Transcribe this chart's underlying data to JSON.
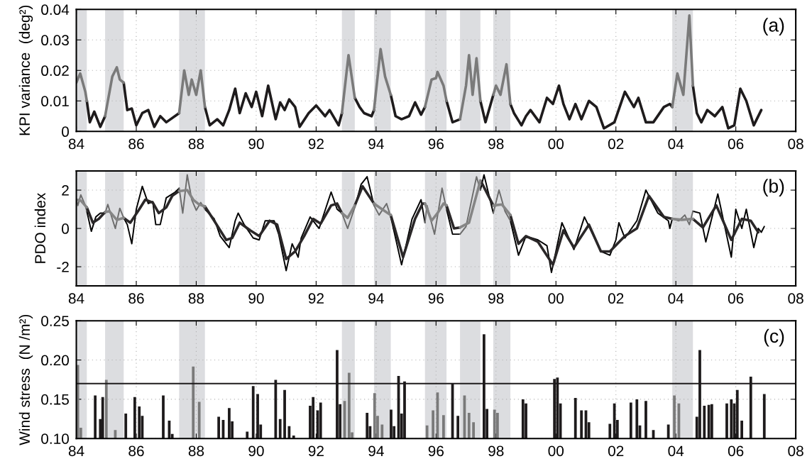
{
  "chart_data": [
    {
      "type": "line",
      "ylabel": "KPI variance  (deg²)",
      "annotations": [
        "(a)"
      ],
      "xlim": [
        1984,
        2008
      ],
      "xticks": [
        {
          "value": 1984,
          "label": "84"
        },
        {
          "value": 1986,
          "label": "86"
        },
        {
          "value": 1988,
          "label": "88"
        },
        {
          "value": 1990,
          "label": "90"
        },
        {
          "value": 1992,
          "label": "92"
        },
        {
          "value": 1994,
          "label": "94"
        },
        {
          "value": 1996,
          "label": "96"
        },
        {
          "value": 1998,
          "label": "98"
        },
        {
          "value": 2000,
          "label": "00"
        },
        {
          "value": 2002,
          "label": "02"
        },
        {
          "value": 2004,
          "label": "04"
        },
        {
          "value": 2006,
          "label": "06"
        },
        {
          "value": 2008,
          "label": "08"
        }
      ],
      "ylim": [
        0,
        0.04
      ],
      "yticks": [
        0,
        0.01,
        0.02,
        0.03,
        0.04
      ],
      "grid": true,
      "bands": [
        {
          "axis": "x",
          "from": 1984.0,
          "to": 1984.35,
          "color": "#dcdde0"
        },
        {
          "axis": "x",
          "from": 1984.96,
          "to": 1985.58,
          "color": "#dcdde0"
        },
        {
          "axis": "x",
          "from": 1987.43,
          "to": 1988.29,
          "color": "#dcdde0"
        },
        {
          "axis": "x",
          "from": 1992.86,
          "to": 1993.29,
          "color": "#dcdde0"
        },
        {
          "axis": "x",
          "from": 1993.93,
          "to": 1994.49,
          "color": "#dcdde0"
        },
        {
          "axis": "x",
          "from": 1995.63,
          "to": 1996.35,
          "color": "#dcdde0"
        },
        {
          "axis": "x",
          "from": 1996.8,
          "to": 1997.48,
          "color": "#dcdde0"
        },
        {
          "axis": "x",
          "from": 1997.91,
          "to": 1998.48,
          "color": "#dcdde0"
        },
        {
          "axis": "x",
          "from": 2003.88,
          "to": 2004.57,
          "color": "#dcdde0"
        }
      ],
      "series": [
        {
          "color": "#1e1b1c",
          "x": [
            1984.35,
            1984.45,
            1984.6,
            1984.8,
            1984.96,
            1985.2,
            1985.58,
            1985.7,
            1985.85,
            1986.0,
            1986.2,
            1986.4,
            1986.6,
            1986.8,
            1987.0,
            1987.43,
            1987.8,
            1988.29,
            1988.45,
            1988.7,
            1988.9,
            1989.1,
            1989.3,
            1989.45,
            1989.65,
            1989.85,
            1990.0,
            1990.2,
            1990.4,
            1990.65,
            1990.8,
            1990.95,
            1991.1,
            1991.3,
            1991.45,
            1991.75,
            1992.0,
            1992.3,
            1992.45,
            1992.75,
            1992.86,
            1993.0,
            1993.29,
            1993.45,
            1993.6,
            1993.85,
            1993.93,
            1994.2,
            1994.49,
            1994.65,
            1994.85,
            1995.1,
            1995.3,
            1995.5,
            1995.63,
            1996.0,
            1996.35,
            1996.55,
            1996.8,
            1997.1,
            1997.48,
            1997.65,
            1997.91,
            1998.2,
            1998.48,
            1998.6,
            1998.85,
            1999.0,
            1999.15,
            1999.45,
            1999.7,
            1999.9,
            2000.1,
            2000.25,
            2000.45,
            2000.65,
            2000.85,
            2001.1,
            2001.35,
            2001.6,
            2001.95,
            2002.3,
            2002.6,
            2002.75,
            2003.0,
            2003.25,
            2003.6,
            2003.8,
            2003.88,
            2004.2,
            2004.57,
            2004.7,
            2004.85,
            2005.05,
            2005.3,
            2005.55,
            2005.75,
            2005.95,
            2006.15,
            2006.35,
            2006.6,
            2006.85
          ],
          "values": [
            0.01,
            0.003,
            0.0065,
            0.0015,
            0.005,
            null,
            0.016,
            0.007,
            0.0075,
            0.002,
            0.006,
            0.007,
            0.0015,
            0.005,
            0.003,
            0.006,
            null,
            0.008,
            0.002,
            0.004,
            0.002,
            0.007,
            0.014,
            0.006,
            0.0125,
            0.008,
            0.013,
            0.005,
            0.015,
            0.004,
            0.0095,
            0.007,
            0.0105,
            0.008,
            0.0015,
            0.006,
            0.0085,
            0.005,
            0.007,
            0.002,
            0.006,
            null,
            0.011,
            0.008,
            0.006,
            0.005,
            0.007,
            null,
            0.012,
            0.005,
            0.004,
            0.005,
            0.0095,
            0.0055,
            0.008,
            null,
            0.01,
            0.003,
            0.004,
            null,
            0.01,
            0.003,
            0.012,
            null,
            0.009,
            0.006,
            0.002,
            0.005,
            0.007,
            0.003,
            0.011,
            0.009,
            0.015,
            0.009,
            0.004,
            0.009,
            0.004,
            0.01,
            0.008,
            0.001,
            0.003,
            0.013,
            0.008,
            0.011,
            0.003,
            0.003,
            0.008,
            0.009,
            0.008,
            null,
            0.015,
            0.006,
            0.003,
            0.007,
            0.005,
            0.008,
            0.001,
            0.002,
            0.014,
            0.01,
            0.002,
            0.007
          ]
        },
        {
          "color": "#7a7a7a",
          "x": [
            1984.0,
            1984.13,
            1984.3,
            1984.35,
            1984.6,
            1984.96,
            1985.2,
            1985.35,
            1985.45,
            1985.58,
            1986.5,
            1987.43,
            1987.6,
            1987.75,
            1987.85,
            1988.0,
            1988.15,
            1988.29,
            1990.0,
            1992.86,
            1993.08,
            1993.29,
            1993.6,
            1993.93,
            1994.15,
            1994.3,
            1994.49,
            1995.0,
            1995.63,
            1995.85,
            1996.0,
            1996.05,
            1996.25,
            1996.35,
            1996.55,
            1996.8,
            1997.0,
            1997.1,
            1997.22,
            1997.35,
            1997.48,
            1997.65,
            1997.91,
            1998.0,
            1998.15,
            1998.35,
            1998.48,
            2001.0,
            2003.88,
            2004.05,
            2004.25,
            2004.45,
            2004.57
          ],
          "values": [
            0.016,
            0.019,
            0.013,
            0.01,
            null,
            0.005,
            0.018,
            0.021,
            0.017,
            0.016,
            null,
            0.006,
            0.02,
            0.012,
            0.017,
            0.012,
            0.02,
            0.008,
            null,
            0.006,
            0.025,
            0.011,
            null,
            0.007,
            0.027,
            0.018,
            0.012,
            null,
            0.008,
            0.017,
            0.0175,
            0.0195,
            0.015,
            0.01,
            null,
            0.004,
            0.015,
            0.025,
            0.012,
            0.024,
            0.01,
            null,
            0.012,
            0.015,
            0.012,
            0.022,
            0.009,
            null,
            0.008,
            0.019,
            0.012,
            0.038,
            0.015
          ]
        }
      ]
    },
    {
      "type": "line",
      "ylabel": "PDO index",
      "annotations": [
        "(b)"
      ],
      "xlim": [
        1984,
        2008
      ],
      "xticks": [
        {
          "value": 1984,
          "label": "84"
        },
        {
          "value": 1986,
          "label": "86"
        },
        {
          "value": 1988,
          "label": "88"
        },
        {
          "value": 1990,
          "label": "90"
        },
        {
          "value": 1992,
          "label": "92"
        },
        {
          "value": 1994,
          "label": "94"
        },
        {
          "value": 1996,
          "label": "96"
        },
        {
          "value": 1998,
          "label": "98"
        },
        {
          "value": 2000,
          "label": "00"
        },
        {
          "value": 2002,
          "label": "02"
        },
        {
          "value": 2004,
          "label": "04"
        },
        {
          "value": 2006,
          "label": "06"
        },
        {
          "value": 2008,
          "label": "08"
        }
      ],
      "ylim": [
        -3,
        3
      ],
      "yticks": [
        -2,
        0,
        2
      ],
      "grid": true,
      "bands": [
        {
          "axis": "x",
          "from": 1984.0,
          "to": 1984.35,
          "color": "#dcdde0"
        },
        {
          "axis": "x",
          "from": 1984.96,
          "to": 1985.58,
          "color": "#dcdde0"
        },
        {
          "axis": "x",
          "from": 1987.43,
          "to": 1988.29,
          "color": "#dcdde0"
        },
        {
          "axis": "x",
          "from": 1992.86,
          "to": 1993.29,
          "color": "#dcdde0"
        },
        {
          "axis": "x",
          "from": 1993.93,
          "to": 1994.49,
          "color": "#dcdde0"
        },
        {
          "axis": "x",
          "from": 1995.63,
          "to": 1996.35,
          "color": "#dcdde0"
        },
        {
          "axis": "x",
          "from": 1996.8,
          "to": 1997.48,
          "color": "#dcdde0"
        },
        {
          "axis": "x",
          "from": 1997.91,
          "to": 1998.48,
          "color": "#dcdde0"
        },
        {
          "axis": "x",
          "from": 2003.88,
          "to": 2004.57,
          "color": "#dcdde0"
        }
      ],
      "series": [
        {
          "color": "#000000",
          "x": [
            1984.35,
            1984.5,
            1984.65,
            1984.8,
            1984.96,
            1985.2,
            1985.58,
            1985.7,
            1985.85,
            1986.0,
            1986.2,
            1986.4,
            1986.55,
            1986.65,
            1986.8,
            1987.0,
            1987.3,
            1987.43,
            1987.8,
            1988.29,
            1988.6,
            1988.8,
            1989.1,
            1989.3,
            1989.4,
            1989.6,
            1989.9,
            1990.1,
            1990.3,
            1990.6,
            1990.75,
            1991.0,
            1991.2,
            1991.4,
            1991.5,
            1991.8,
            1992.1,
            1992.5,
            1992.7,
            1992.86,
            1993.0,
            1993.29,
            1993.5,
            1993.7,
            1993.93,
            1994.2,
            1994.49,
            1994.85,
            1995.2,
            1995.5,
            1995.63,
            1996.0,
            1996.35,
            1996.55,
            1996.8,
            1997.1,
            1997.48,
            1997.6,
            1997.91,
            1998.2,
            1998.48,
            1998.75,
            1999.0,
            1999.4,
            1999.7,
            1999.85,
            2000.2,
            2000.6,
            2000.95,
            2001.5,
            2001.8,
            2002.0,
            2002.1,
            2002.3,
            2002.7,
            2003.0,
            2003.4,
            2003.75,
            2003.8,
            2003.88,
            2004.2,
            2004.57,
            2004.8,
            2005.0,
            2005.4,
            2005.85,
            2006.0,
            2006.2,
            2006.35,
            2006.6,
            2006.75,
            2006.85,
            2006.95
          ],
          "values": [
            0.9,
            -0.15,
            0.6,
            0.8,
            0.8,
            null,
            0.55,
            0.2,
            -0.8,
            1.0,
            2.2,
            1.3,
            1.4,
            0.2,
            0.2,
            1.6,
            1.9,
            2.1,
            null,
            1.0,
            0.5,
            -0.4,
            -1.0,
            0.4,
            0.8,
            0.2,
            -0.5,
            -0.6,
            0.4,
            0.4,
            -0.3,
            -2.2,
            -0.8,
            -1.5,
            -0.5,
            0.6,
            0.0,
            1.9,
            1.0,
            0.8,
            null,
            1.1,
            2.3,
            2.7,
            1.2,
            null,
            0.6,
            -1.9,
            0.5,
            1.5,
            0.3,
            null,
            1.0,
            -0.3,
            -0.3,
            null,
            2.0,
            2.8,
            0.8,
            null,
            0.4,
            -1.4,
            -0.4,
            -0.6,
            -0.9,
            -2.3,
            0.3,
            -1.1,
            0.6,
            -1.2,
            -1.4,
            -0.6,
            0.3,
            -0.5,
            0.4,
            2.0,
            0.8,
            0.4,
            0.0,
            0.5,
            null,
            0.9,
            0.8,
            -0.7,
            1.8,
            -1.5,
            1.0,
            0.0,
            1.0,
            -1.0,
            0.0,
            -0.2,
            0.1
          ]
        },
        {
          "color": "#6c6c6c",
          "x": [
            1984.0,
            1984.05,
            1984.15,
            1984.3,
            1984.35,
            1984.6,
            1984.96,
            1985.05,
            1985.3,
            1985.45,
            1985.58,
            1986.5,
            1987.43,
            1987.55,
            1987.7,
            1987.85,
            1988.0,
            1988.15,
            1988.29,
            1990.0,
            1992.86,
            1993.05,
            1993.29,
            1993.6,
            1993.93,
            1994.1,
            1994.35,
            1994.49,
            1995.0,
            1995.63,
            1995.7,
            1995.95,
            1996.2,
            1996.35,
            1996.6,
            1996.8,
            1997.0,
            1997.35,
            1997.48,
            1997.7,
            1997.91,
            1998.1,
            1998.3,
            1998.48,
            2001.0,
            2003.88,
            2004.1,
            2004.3,
            2004.45,
            2004.57
          ],
          "values": [
            1.5,
            1.2,
            1.75,
            1.2,
            0.9,
            null,
            0.8,
            1.25,
            0.0,
            1.05,
            0.55,
            null,
            2.1,
            0.8,
            2.8,
            1.5,
            0.95,
            1.35,
            1.0,
            null,
            0.8,
            0.0,
            1.1,
            null,
            1.2,
            0.7,
            1.3,
            0.6,
            null,
            0.3,
            1.2,
            -0.3,
            2.1,
            1.0,
            null,
            -0.3,
            0.1,
            2.7,
            2.0,
            null,
            0.8,
            2.0,
            0.9,
            0.4,
            null,
            0.5,
            0.4,
            0.7,
            0.2,
            0.9
          ]
        },
        {
          "color": "#2a2728",
          "x": [
            1984.35,
            1984.55,
            1984.75,
            1984.96,
            1985.2,
            1985.58,
            1985.8,
            1986.1,
            1986.3,
            1986.55,
            1986.75,
            1987.0,
            1987.2,
            1987.43,
            1987.8,
            1988.29,
            1988.6,
            1989.0,
            1989.2,
            1989.45,
            1989.8,
            1990.1,
            1990.45,
            1990.7,
            1991.0,
            1991.3,
            1991.6,
            1991.9,
            1992.15,
            1992.5,
            1992.7,
            1992.86,
            1993.0,
            1993.29,
            1993.55,
            1993.93,
            1994.2,
            1994.49,
            1994.9,
            1995.3,
            1995.55,
            1995.63,
            1996.0,
            1996.35,
            1996.6,
            1996.8,
            1997.1,
            1997.48,
            1997.55,
            1997.91,
            1998.2,
            1998.48,
            1998.75,
            1999.0,
            1999.4,
            1999.9,
            2000.25,
            2000.6,
            2001.1,
            2001.5,
            2001.8,
            2002.3,
            2002.7,
            2003.1,
            2003.6,
            2003.88,
            2004.2,
            2004.57,
            2004.9,
            2005.35,
            2005.85,
            2006.2,
            2006.5,
            2006.75
          ],
          "values": [
            1.1,
            0.3,
            0.5,
            0.85,
            null,
            0.55,
            0.3,
            1.0,
            1.5,
            1.35,
            0.8,
            1.1,
            1.7,
            1.95,
            null,
            1.15,
            0.4,
            -0.6,
            -0.5,
            0.3,
            -0.1,
            -0.4,
            0.4,
            0.2,
            -1.6,
            -1.2,
            -0.4,
            0.5,
            0.25,
            1.2,
            1.3,
            0.8,
            null,
            1.2,
            2.2,
            1.3,
            null,
            0.7,
            -1.5,
            0.5,
            1.3,
            1.3,
            null,
            1.2,
            0.0,
            0.05,
            null,
            2.5,
            2.3,
            1.2,
            null,
            0.7,
            -0.8,
            -0.4,
            -0.7,
            -1.9,
            -0.1,
            -1.0,
            0.2,
            -1.2,
            -1.2,
            -0.4,
            0.0,
            1.7,
            0.6,
            0.5,
            null,
            0.5,
            0.05,
            1.2,
            -0.6,
            0.5,
            0.4,
            -0.2
          ]
        },
        {
          "color": "#858585",
          "x": [
            1984.0,
            1984.15,
            1984.35,
            1984.6,
            1984.96,
            1985.1,
            1985.35,
            1985.58,
            1986.5,
            1987.43,
            1987.7,
            1987.9,
            1988.1,
            1988.29,
            1990.0,
            1992.86,
            1993.05,
            1993.29,
            1993.6,
            1993.93,
            1994.2,
            1994.49,
            1995.0,
            1995.63,
            1995.85,
            1996.05,
            1996.25,
            1996.35,
            1996.6,
            1996.8,
            1997.1,
            1997.48,
            1997.6,
            1997.91,
            1998.2,
            1998.48,
            2001.0,
            2003.88,
            2004.2,
            2004.57
          ],
          "values": [
            1.5,
            1.45,
            1.1,
            null,
            0.85,
            0.9,
            0.45,
            0.55,
            null,
            1.95,
            2.0,
            1.5,
            1.25,
            1.15,
            null,
            0.8,
            0.55,
            1.2,
            null,
            1.3,
            1.0,
            0.7,
            null,
            1.3,
            0.4,
            0.8,
            1.3,
            1.2,
            null,
            0.05,
            0.3,
            2.5,
            null,
            1.2,
            1.25,
            0.7,
            null,
            0.5,
            0.45,
            0.5
          ]
        }
      ]
    },
    {
      "type": "bar",
      "ylabel": "Wind stress  (N /m²)",
      "annotations": [
        "(c)"
      ],
      "xlim": [
        1984,
        2008
      ],
      "xticks": [
        {
          "value": 1984,
          "label": "84"
        },
        {
          "value": 1986,
          "label": "86"
        },
        {
          "value": 1988,
          "label": "88"
        },
        {
          "value": 1990,
          "label": "90"
        },
        {
          "value": 1992,
          "label": "92"
        },
        {
          "value": 1994,
          "label": "94"
        },
        {
          "value": 1996,
          "label": "96"
        },
        {
          "value": 1998,
          "label": "98"
        },
        {
          "value": 2000,
          "label": "00"
        },
        {
          "value": 2002,
          "label": "02"
        },
        {
          "value": 2004,
          "label": "04"
        },
        {
          "value": 2006,
          "label": "06"
        },
        {
          "value": 2008,
          "label": "08"
        }
      ],
      "ylim": [
        0.1,
        0.25
      ],
      "yticks": [
        {
          "value": 0.1,
          "label": "0.10"
        },
        {
          "value": 0.15,
          "label": "0.15"
        },
        {
          "value": 0.2,
          "label": "0.20"
        },
        {
          "value": 0.25,
          "label": "0.25"
        }
      ],
      "grid": true,
      "ref_lines": [
        {
          "axis": "y",
          "value": 0.17,
          "color": "#1e1b1c"
        }
      ],
      "bands": [
        {
          "axis": "x",
          "from": 1984.0,
          "to": 1984.35,
          "color": "#dcdde0"
        },
        {
          "axis": "x",
          "from": 1984.96,
          "to": 1985.58,
          "color": "#dcdde0"
        },
        {
          "axis": "x",
          "from": 1987.43,
          "to": 1988.29,
          "color": "#dcdde0"
        },
        {
          "axis": "x",
          "from": 1992.86,
          "to": 1993.29,
          "color": "#dcdde0"
        },
        {
          "axis": "x",
          "from": 1993.93,
          "to": 1994.49,
          "color": "#dcdde0"
        },
        {
          "axis": "x",
          "from": 1995.63,
          "to": 1996.35,
          "color": "#dcdde0"
        },
        {
          "axis": "x",
          "from": 1996.8,
          "to": 1997.48,
          "color": "#dcdde0"
        },
        {
          "axis": "x",
          "from": 1997.91,
          "to": 1998.48,
          "color": "#dcdde0"
        },
        {
          "axis": "x",
          "from": 2003.88,
          "to": 2004.57,
          "color": "#dcdde0"
        }
      ],
      "series": [
        {
          "color": "#1e1b1c",
          "x": [
            1984.63,
            1984.8,
            1984.88,
            1985.65,
            1985.95,
            1986.1,
            1986.2,
            1986.9,
            1987.1,
            1987.2,
            1988.75,
            1988.9,
            1989.1,
            1989.2,
            1989.7,
            1989.9,
            1990.05,
            1990.15,
            1990.65,
            1990.8,
            1990.95,
            1991.1,
            1991.25,
            1991.8,
            1991.9,
            1992.05,
            1992.15,
            1992.7,
            1992.8,
            1993.7,
            1993.8,
            1994.5,
            1994.6,
            1994.75,
            1994.85,
            1994.95,
            1996.55,
            1996.73,
            1997.6,
            1997.7,
            1998.9,
            1999.0,
            1999.95,
            2000.05,
            2000.15,
            2000.65,
            2000.85,
            2001.0,
            2001.1,
            2001.8,
            2001.95,
            2002.05,
            2002.5,
            2002.7,
            2002.8,
            2003.0,
            2003.25,
            2003.75,
            2004.7,
            2004.8,
            2004.95,
            2005.1,
            2005.2,
            2005.7,
            2005.85,
            2005.95,
            2006.05,
            2006.2,
            2006.5,
            2006.95
          ],
          "values": [
            0.154,
            0.124,
            0.152,
            0.131,
            0.152,
            0.14,
            0.128,
            0.154,
            0.122,
            0.105,
            0.127,
            0.123,
            0.138,
            0.121,
            0.108,
            0.166,
            0.156,
            0.117,
            0.174,
            0.124,
            0.161,
            0.115,
            0.103,
            0.141,
            0.152,
            0.135,
            0.145,
            0.212,
            0.143,
            0.132,
            0.115,
            0.136,
            0.115,
            0.179,
            0.131,
            0.172,
            0.17,
            0.128,
            0.232,
            0.137,
            0.149,
            0.144,
            0.175,
            0.177,
            0.144,
            0.151,
            0.135,
            0.135,
            0.12,
            0.118,
            0.144,
            0.123,
            0.145,
            0.149,
            0.116,
            0.147,
            0.11,
            0.117,
            0.127,
            0.212,
            0.141,
            0.142,
            0.143,
            0.144,
            0.149,
            0.144,
            0.161,
            0.122,
            0.178,
            0.156
          ]
        },
        {
          "color": "#7a7a7a",
          "x": [
            1984.05,
            1984.15,
            1985.0,
            1985.3,
            1987.9,
            1988.1,
            1992.95,
            1993.1,
            1993.2,
            1993.95,
            1994.05,
            1994.2,
            1995.7,
            1995.9,
            1996.05,
            1996.25,
            1996.95,
            1997.1,
            1997.25,
            1997.95,
            1998.05,
            2003.95,
            2004.1
          ],
          "values": [
            0.193,
            0.113,
            0.174,
            0.11,
            0.191,
            0.146,
            0.147,
            0.183,
            0.107,
            0.157,
            0.128,
            0.117,
            0.116,
            0.135,
            0.158,
            0.129,
            0.154,
            0.132,
            0.12,
            0.136,
            0.132,
            0.154,
            0.144
          ]
        }
      ]
    }
  ]
}
